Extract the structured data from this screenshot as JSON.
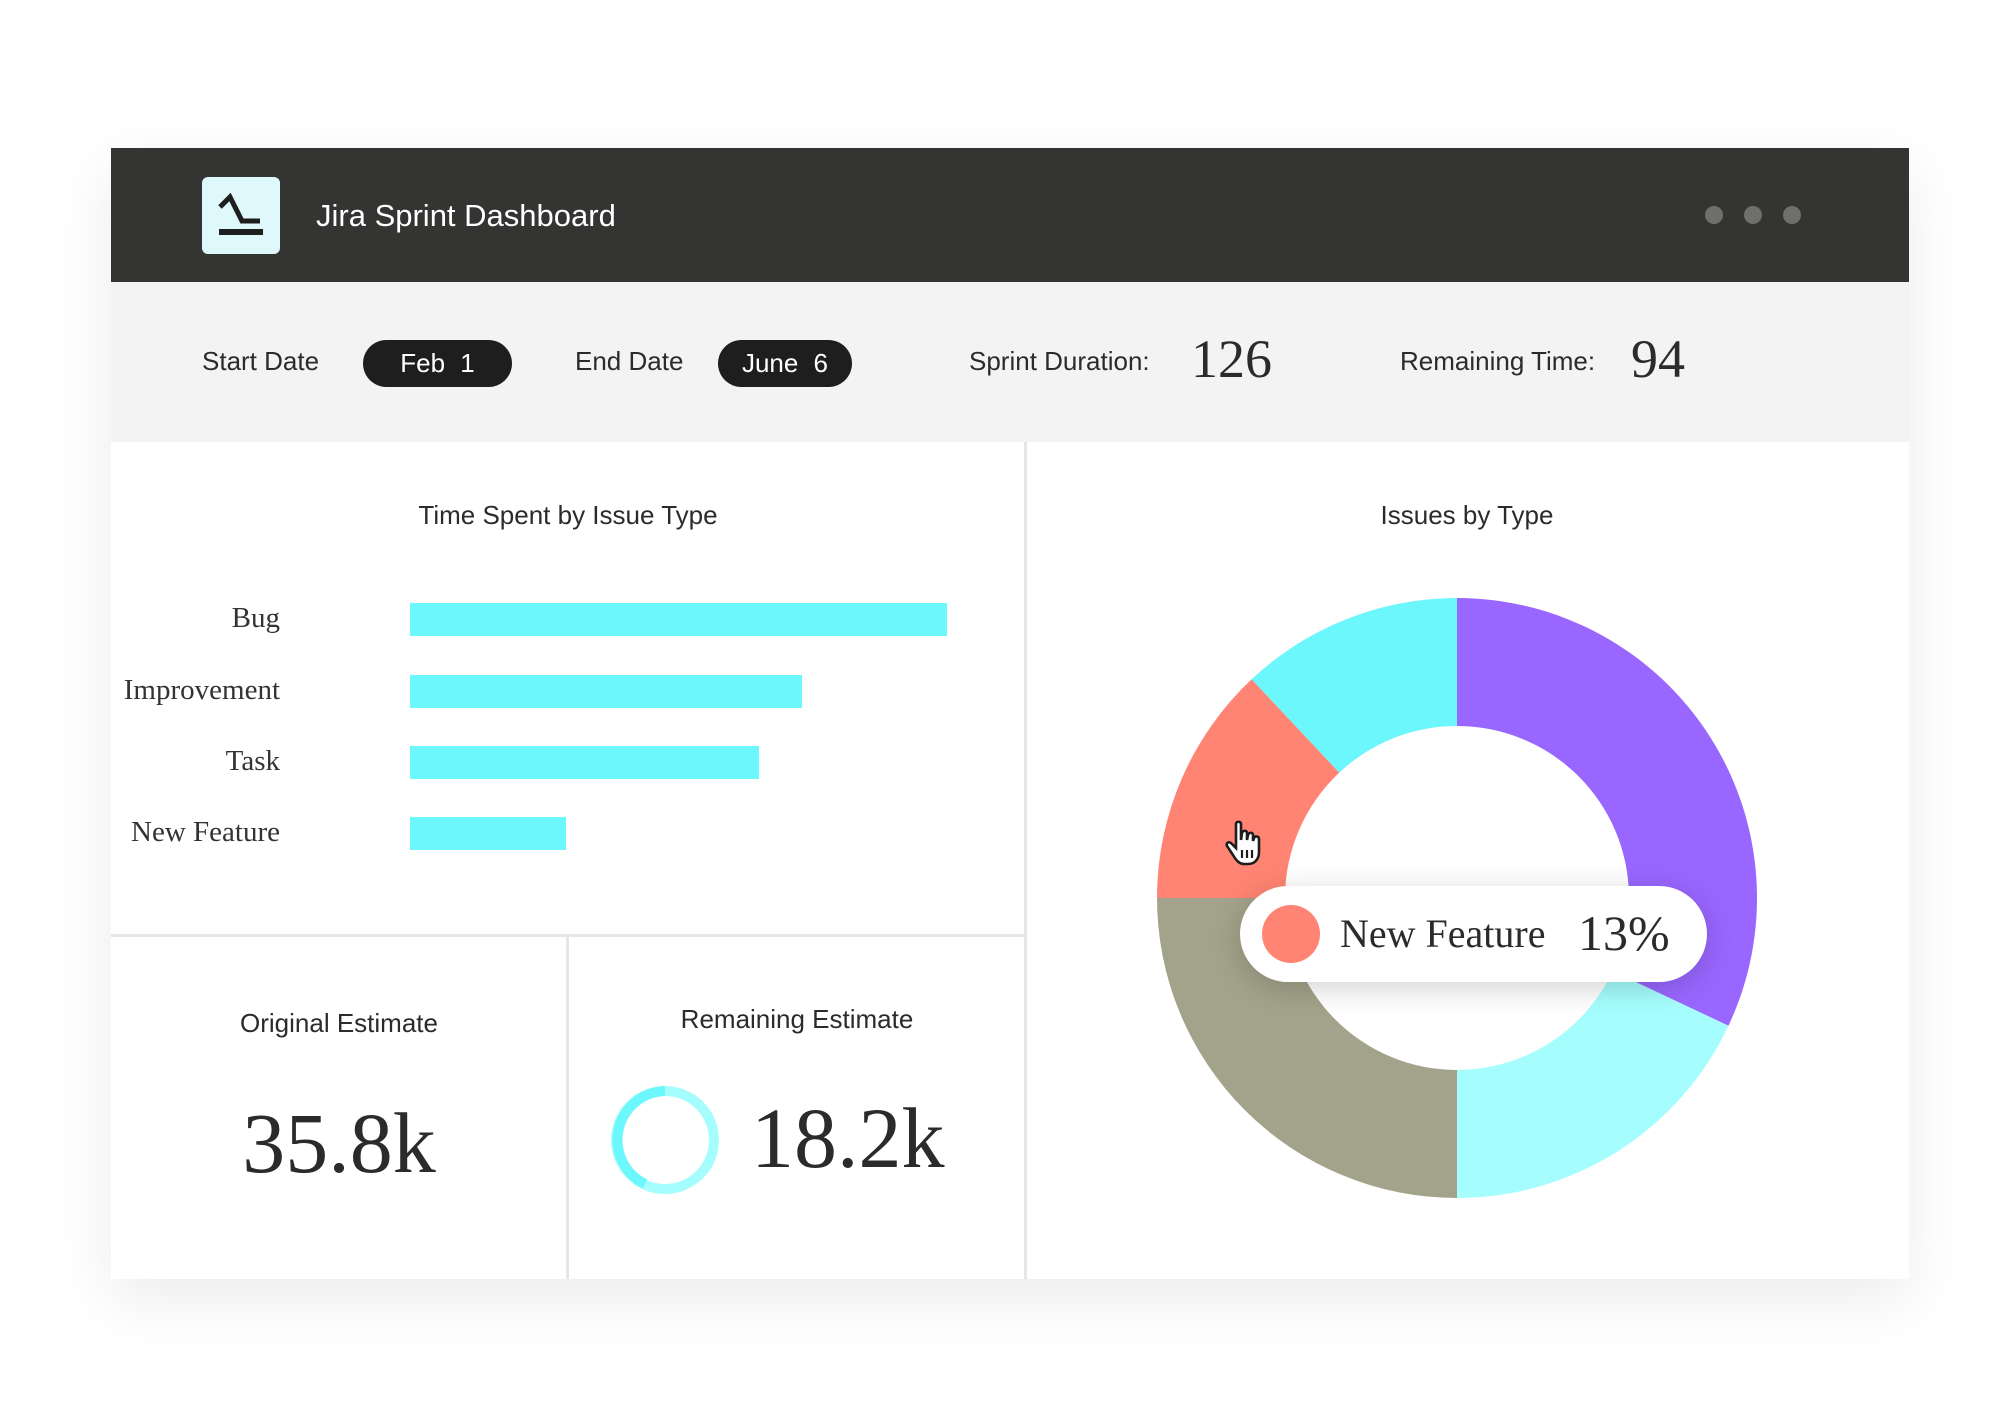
{
  "header": {
    "title": "Jira Sprint Dashboard",
    "logo_icon": "chart-step-icon",
    "menu_icon": "more-dots-icon"
  },
  "filters": {
    "start_label": "Start Date",
    "start_value": "Feb 1",
    "end_label": "End Date",
    "end_value": "June 6",
    "duration_label": "Sprint Duration:",
    "duration_value": "126",
    "remaining_label": "Remaining Time:",
    "remaining_value": "94"
  },
  "stats": {
    "original_label": "Original Estimate",
    "original_value": "35.8k",
    "remaining_label": "Remaining Estimate",
    "remaining_value": "18.2k"
  },
  "tooltip": {
    "label": "New Feature",
    "value": "13%"
  },
  "colors": {
    "bar": "#6cf7fc",
    "purple": "#9966ff",
    "light_cyan": "#a6fdfd",
    "gray": "#a3a38b",
    "salmon": "#ff8473",
    "cyan": "#6cf7fc"
  },
  "chart_data": [
    {
      "type": "bar",
      "title": "Time Spent by Issue Type",
      "orientation": "horizontal",
      "categories": [
        "Bug",
        "Improvement",
        "Task",
        "New Feature"
      ],
      "values": [
        100,
        73,
        65,
        29
      ],
      "xlabel": "",
      "ylabel": "",
      "grid": false
    },
    {
      "type": "pie",
      "donut": true,
      "title": "Issues by Type",
      "slices": [
        {
          "name": "",
          "value": 32,
          "color": "#9966ff"
        },
        {
          "name": "",
          "value": 18,
          "color": "#a6fdfd"
        },
        {
          "name": "",
          "value": 25,
          "color": "#a3a38b"
        },
        {
          "name": "New Feature",
          "value": 13,
          "color": "#ff8473"
        },
        {
          "name": "",
          "value": 12,
          "color": "#6cf7fc"
        }
      ]
    }
  ]
}
